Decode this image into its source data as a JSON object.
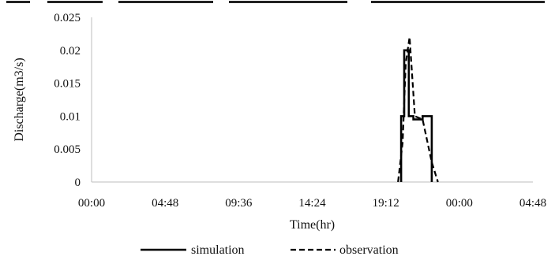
{
  "chart_data": {
    "type": "line",
    "title": "",
    "xlabel": "Time(hr)",
    "ylabel": "Discharge(m3/s)",
    "x_tick_labels": [
      "00:00",
      "04:48",
      "09:36",
      "14:24",
      "19:12",
      "00:00",
      "04:48"
    ],
    "y_tick_labels": [
      "0",
      "0.005",
      "0.01",
      "0.015",
      "0.02",
      "0.025"
    ],
    "xlim_hours": [
      0,
      28.8
    ],
    "ylim": [
      0,
      0.025
    ],
    "grid": false,
    "legend_position": "bottom",
    "series": [
      {
        "name": "simulation",
        "style": "solid",
        "color": "#000000",
        "x_hours": [
          20.2,
          20.2,
          20.4,
          20.4,
          20.7,
          20.7,
          21.0,
          21.0,
          21.6,
          21.6,
          22.2,
          22.2
        ],
        "y": [
          0,
          0.01,
          0.01,
          0.02,
          0.02,
          0.01,
          0.01,
          0.0095,
          0.0095,
          0.01,
          0.01,
          0
        ]
      },
      {
        "name": "observation",
        "style": "dashed",
        "color": "#000000",
        "x_hours": [
          20.0,
          20.3,
          20.5,
          20.75,
          21.1,
          21.6,
          22.2,
          22.6
        ],
        "y": [
          0,
          0.006,
          0.018,
          0.022,
          0.01,
          0.0095,
          0.003,
          0
        ]
      }
    ]
  }
}
